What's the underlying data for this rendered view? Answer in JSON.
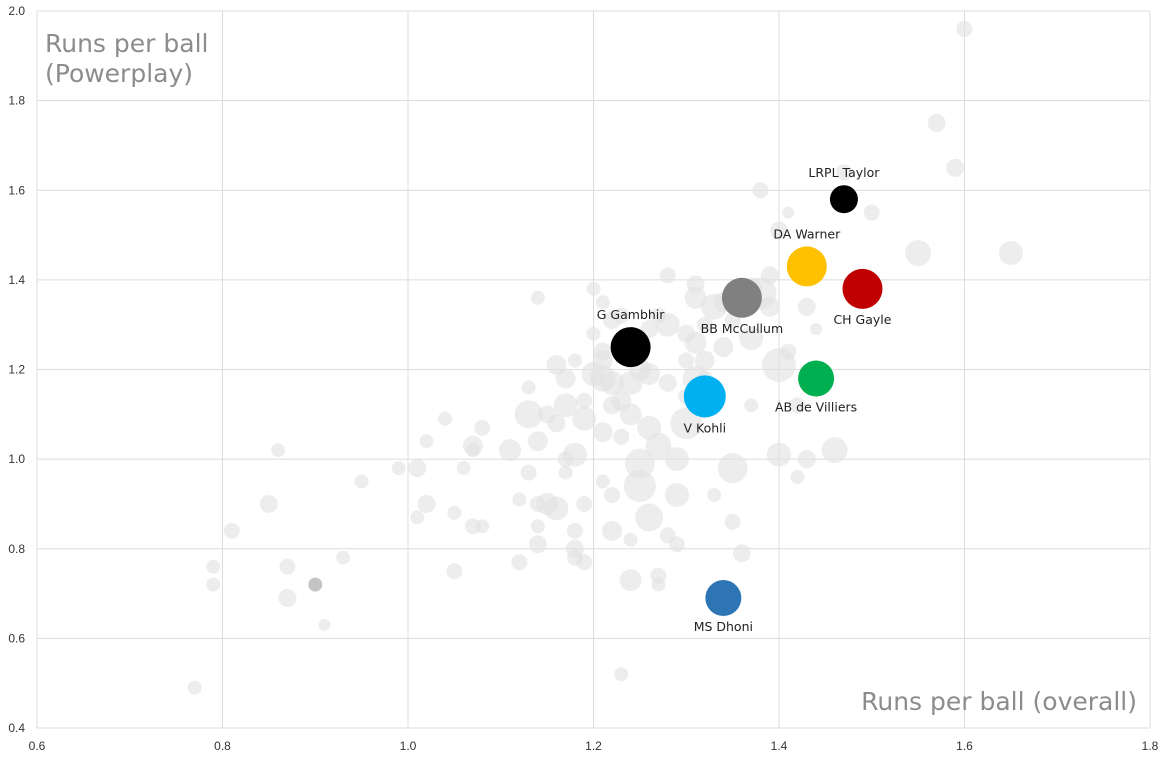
{
  "chart_data": {
    "type": "scatter",
    "xlabel": "Runs per ball (overall)",
    "ylabel_lines": [
      "Runs per ball",
      "(Powerplay)"
    ],
    "xlim": [
      0.6,
      1.8
    ],
    "ylim": [
      0.4,
      2.0
    ],
    "x_ticks": [
      "0.6",
      "0.8",
      "1.0",
      "1.2",
      "1.4",
      "1.6",
      "1.8"
    ],
    "y_ticks": [
      "0.4",
      "0.6",
      "0.8",
      "1.0",
      "1.2",
      "1.4",
      "1.6",
      "1.8",
      "2.0"
    ],
    "grid": true,
    "background_color": "#e2e2e2",
    "highlighted": [
      {
        "label": "LRPL Taylor",
        "x": 1.47,
        "y": 1.58,
        "size": 14,
        "color": "#000000",
        "label_pos": "above"
      },
      {
        "label": "DA Warner",
        "x": 1.43,
        "y": 1.43,
        "size": 20,
        "color": "#ffc000",
        "label_pos": "above"
      },
      {
        "label": "CH Gayle",
        "x": 1.49,
        "y": 1.38,
        "size": 20,
        "color": "#c00000",
        "label_pos": "below"
      },
      {
        "label": "BB McCullum",
        "x": 1.36,
        "y": 1.36,
        "size": 20,
        "color": "#808080",
        "label_pos": "below"
      },
      {
        "label": "G Gambhir",
        "x": 1.24,
        "y": 1.25,
        "size": 20,
        "color": "#000000",
        "label_pos": "above"
      },
      {
        "label": "AB de Villiers",
        "x": 1.44,
        "y": 1.18,
        "size": 18,
        "color": "#00b050",
        "label_pos": "below"
      },
      {
        "label": "V Kohli",
        "x": 1.32,
        "y": 1.14,
        "size": 21,
        "color": "#00b0f0",
        "label_pos": "below"
      },
      {
        "label": "MS Dhoni",
        "x": 1.34,
        "y": 0.69,
        "size": 18,
        "color": "#2e75b6",
        "label_pos": "below"
      }
    ],
    "background_points": [
      [
        0.77,
        0.49,
        7
      ],
      [
        0.79,
        0.72,
        7
      ],
      [
        0.79,
        0.76,
        7
      ],
      [
        0.81,
        0.84,
        8
      ],
      [
        0.85,
        0.9,
        9
      ],
      [
        0.86,
        1.02,
        7
      ],
      [
        0.87,
        0.76,
        8
      ],
      [
        0.87,
        0.69,
        9
      ],
      [
        0.9,
        0.72,
        7,
        "#c4c4c4"
      ],
      [
        0.91,
        0.63,
        6
      ],
      [
        0.93,
        0.78,
        7
      ],
      [
        0.95,
        0.95,
        7
      ],
      [
        0.99,
        0.98,
        7
      ],
      [
        1.01,
        0.98,
        9
      ],
      [
        1.01,
        0.87,
        7
      ],
      [
        1.02,
        0.9,
        9
      ],
      [
        1.02,
        1.04,
        7
      ],
      [
        1.04,
        1.09,
        7
      ],
      [
        1.05,
        0.75,
        8
      ],
      [
        1.05,
        0.88,
        7
      ],
      [
        1.06,
        0.98,
        7
      ],
      [
        1.07,
        1.02,
        7
      ],
      [
        1.07,
        1.03,
        10
      ],
      [
        1.07,
        0.85,
        8
      ],
      [
        1.08,
        1.07,
        8
      ],
      [
        1.08,
        0.85,
        7
      ],
      [
        1.11,
        1.02,
        11
      ],
      [
        1.12,
        0.91,
        7
      ],
      [
        1.12,
        0.77,
        8
      ],
      [
        1.13,
        1.16,
        7
      ],
      [
        1.13,
        1.1,
        14
      ],
      [
        1.13,
        0.97,
        8
      ],
      [
        1.14,
        0.9,
        8
      ],
      [
        1.14,
        0.85,
        7
      ],
      [
        1.14,
        0.81,
        9
      ],
      [
        1.14,
        1.04,
        10
      ],
      [
        1.14,
        1.36,
        7
      ],
      [
        1.15,
        0.9,
        11
      ],
      [
        1.15,
        1.1,
        9
      ],
      [
        1.16,
        0.89,
        12
      ],
      [
        1.16,
        1.21,
        10
      ],
      [
        1.16,
        1.08,
        9
      ],
      [
        1.17,
        1.0,
        8
      ],
      [
        1.17,
        1.18,
        10
      ],
      [
        1.17,
        1.12,
        12
      ],
      [
        1.17,
        0.97,
        7
      ],
      [
        1.18,
        1.22,
        7
      ],
      [
        1.18,
        1.01,
        12
      ],
      [
        1.18,
        0.84,
        8
      ],
      [
        1.18,
        0.8,
        9
      ],
      [
        1.18,
        0.78,
        8
      ],
      [
        1.19,
        1.13,
        8
      ],
      [
        1.19,
        1.09,
        12
      ],
      [
        1.19,
        0.9,
        8
      ],
      [
        1.19,
        0.77,
        8
      ],
      [
        1.2,
        1.38,
        7
      ],
      [
        1.2,
        1.28,
        7
      ],
      [
        1.2,
        1.19,
        12
      ],
      [
        1.21,
        1.35,
        7
      ],
      [
        1.21,
        1.24,
        9
      ],
      [
        1.21,
        1.22,
        10
      ],
      [
        1.21,
        1.18,
        13
      ],
      [
        1.21,
        1.06,
        10
      ],
      [
        1.21,
        0.95,
        7
      ],
      [
        1.22,
        1.31,
        9
      ],
      [
        1.22,
        1.17,
        12
      ],
      [
        1.22,
        1.12,
        9
      ],
      [
        1.22,
        0.92,
        8
      ],
      [
        1.22,
        0.84,
        10
      ],
      [
        1.23,
        0.52,
        7
      ],
      [
        1.23,
        1.32,
        8
      ],
      [
        1.23,
        1.13,
        10
      ],
      [
        1.23,
        1.05,
        8
      ],
      [
        1.24,
        1.17,
        12
      ],
      [
        1.24,
        0.82,
        7
      ],
      [
        1.24,
        0.73,
        11
      ],
      [
        1.24,
        1.1,
        11
      ],
      [
        1.25,
        1.2,
        11
      ],
      [
        1.25,
        0.99,
        15
      ],
      [
        1.25,
        0.94,
        16
      ],
      [
        1.26,
        1.29,
        9
      ],
      [
        1.26,
        1.19,
        11
      ],
      [
        1.26,
        1.07,
        12
      ],
      [
        1.26,
        0.87,
        14
      ],
      [
        1.27,
        1.32,
        8
      ],
      [
        1.27,
        1.03,
        13
      ],
      [
        1.27,
        0.74,
        8
      ],
      [
        1.27,
        0.72,
        7
      ],
      [
        1.28,
        1.41,
        8
      ],
      [
        1.28,
        1.3,
        12
      ],
      [
        1.28,
        1.17,
        9
      ],
      [
        1.28,
        0.83,
        8
      ],
      [
        1.29,
        1.0,
        12
      ],
      [
        1.29,
        0.92,
        12
      ],
      [
        1.29,
        0.81,
        8
      ],
      [
        1.3,
        1.28,
        9
      ],
      [
        1.3,
        1.22,
        8
      ],
      [
        1.3,
        1.08,
        16
      ],
      [
        1.3,
        1.14,
        8
      ],
      [
        1.31,
        1.39,
        9
      ],
      [
        1.31,
        1.36,
        11
      ],
      [
        1.31,
        1.26,
        11
      ],
      [
        1.31,
        1.18,
        13
      ],
      [
        1.32,
        1.3,
        8
      ],
      [
        1.32,
        1.22,
        10
      ],
      [
        1.32,
        1.18,
        8
      ],
      [
        1.32,
        1.11,
        9
      ],
      [
        1.33,
        1.34,
        13
      ],
      [
        1.33,
        0.92,
        7
      ],
      [
        1.34,
        1.35,
        10
      ],
      [
        1.34,
        1.25,
        10
      ],
      [
        1.35,
        1.31,
        8
      ],
      [
        1.35,
        0.98,
        15
      ],
      [
        1.35,
        0.86,
        8
      ],
      [
        1.36,
        1.37,
        12
      ],
      [
        1.36,
        0.79,
        9
      ],
      [
        1.37,
        1.38,
        11
      ],
      [
        1.37,
        1.27,
        12
      ],
      [
        1.37,
        1.12,
        7
      ],
      [
        1.38,
        1.6,
        8
      ],
      [
        1.38,
        1.37,
        16
      ],
      [
        1.39,
        1.41,
        9
      ],
      [
        1.39,
        1.34,
        10
      ],
      [
        1.4,
        1.51,
        9
      ],
      [
        1.4,
        1.21,
        17
      ],
      [
        1.4,
        1.01,
        12
      ],
      [
        1.41,
        1.55,
        6
      ],
      [
        1.41,
        1.24,
        8
      ],
      [
        1.42,
        1.12,
        8
      ],
      [
        1.42,
        0.96,
        7
      ],
      [
        1.43,
        1.34,
        9
      ],
      [
        1.43,
        1.0,
        9
      ],
      [
        1.44,
        1.29,
        6
      ],
      [
        1.46,
        1.02,
        13
      ],
      [
        1.47,
        1.64,
        8
      ],
      [
        1.47,
        1.57,
        7
      ],
      [
        1.49,
        1.35,
        7
      ],
      [
        1.5,
        1.55,
        8
      ],
      [
        1.55,
        1.46,
        13
      ],
      [
        1.57,
        1.75,
        9
      ],
      [
        1.59,
        1.65,
        9
      ],
      [
        1.6,
        1.96,
        8
      ],
      [
        1.65,
        1.46,
        12
      ]
    ]
  }
}
